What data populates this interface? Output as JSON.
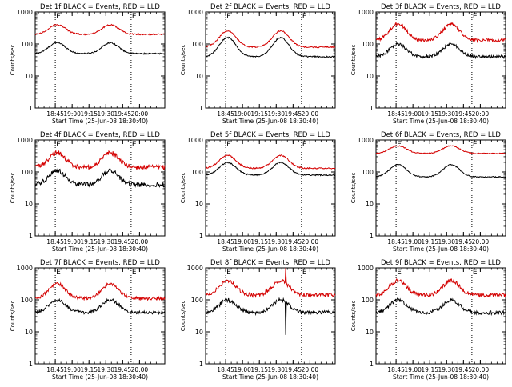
{
  "colors": {
    "events": "#000000",
    "lld": "#d40000",
    "axis": "#000000",
    "background": "#ffffff"
  },
  "shared": {
    "x_ticks": [
      "18:45",
      "19:00",
      "19:15",
      "19:30",
      "19:45",
      "20:00"
    ],
    "y_ticks": [
      "1",
      "10",
      "100",
      "1000"
    ],
    "xlabel": "Start Time (25-Jun-08 18:30:40)",
    "ylabel": "Counts/sec",
    "corner_marks": [
      "E",
      "E"
    ]
  },
  "chart_data": [
    {
      "type": "line",
      "title": "Det 1f BLACK = Events, RED = LLD",
      "yscale": "log",
      "ylim": [
        1,
        1000
      ],
      "series": [
        {
          "name": "Events",
          "color": "#000000",
          "min": 50,
          "peak": 110,
          "noise": 0.02,
          "spikes": []
        },
        {
          "name": "LLD",
          "color": "#d40000",
          "min": 200,
          "peak": 400,
          "noise": 0.02,
          "spikes": []
        }
      ]
    },
    {
      "type": "line",
      "title": "Det 2f BLACK = Events, RED = LLD",
      "yscale": "log",
      "ylim": [
        1,
        1000
      ],
      "series": [
        {
          "name": "Events",
          "color": "#000000",
          "min": 40,
          "peak": 160,
          "noise": 0.02,
          "spikes": []
        },
        {
          "name": "LLD",
          "color": "#d40000",
          "min": 80,
          "peak": 260,
          "noise": 0.02,
          "spikes": []
        }
      ]
    },
    {
      "type": "line",
      "title": "Det 3f BLACK = Events, RED = LLD",
      "yscale": "log",
      "ylim": [
        1,
        1000
      ],
      "series": [
        {
          "name": "Events",
          "color": "#000000",
          "min": 40,
          "peak": 100,
          "noise": 0.05,
          "spikes": []
        },
        {
          "name": "LLD",
          "color": "#d40000",
          "min": 130,
          "peak": 430,
          "noise": 0.05,
          "spikes": []
        }
      ]
    },
    {
      "type": "line",
      "title": "Det 4f BLACK = Events, RED = LLD",
      "yscale": "log",
      "ylim": [
        1,
        1000
      ],
      "series": [
        {
          "name": "Events",
          "color": "#000000",
          "min": 40,
          "peak": 110,
          "noise": 0.07,
          "spikes": []
        },
        {
          "name": "LLD",
          "color": "#d40000",
          "min": 140,
          "peak": 400,
          "noise": 0.07,
          "spikes": []
        }
      ]
    },
    {
      "type": "line",
      "title": "Det 5f BLACK = Events, RED = LLD",
      "yscale": "log",
      "ylim": [
        1,
        1000
      ],
      "series": [
        {
          "name": "Events",
          "color": "#000000",
          "min": 80,
          "peak": 200,
          "noise": 0.02,
          "spikes": []
        },
        {
          "name": "LLD",
          "color": "#d40000",
          "min": 130,
          "peak": 330,
          "noise": 0.02,
          "spikes": []
        }
      ]
    },
    {
      "type": "line",
      "title": "Det 6f BLACK = Events, RED = LLD",
      "yscale": "log",
      "ylim": [
        1,
        1000
      ],
      "series": [
        {
          "name": "Events",
          "color": "#000000",
          "min": 70,
          "peak": 170,
          "noise": 0.015,
          "spikes": []
        },
        {
          "name": "LLD",
          "color": "#d40000",
          "min": 380,
          "peak": 660,
          "noise": 0.015,
          "spikes": []
        }
      ]
    },
    {
      "type": "line",
      "title": "Det 7f BLACK = Events, RED = LLD",
      "yscale": "log",
      "ylim": [
        1,
        1000
      ],
      "series": [
        {
          "name": "Events",
          "color": "#000000",
          "min": 40,
          "peak": 100,
          "noise": 0.05,
          "spikes": []
        },
        {
          "name": "LLD",
          "color": "#d40000",
          "min": 110,
          "peak": 320,
          "noise": 0.05,
          "spikes": []
        }
      ]
    },
    {
      "type": "line",
      "title": "Det 8f BLACK = Events, RED = LLD",
      "yscale": "log",
      "ylim": [
        1,
        1000
      ],
      "series": [
        {
          "name": "Events",
          "color": "#000000",
          "min": 40,
          "peak": 100,
          "noise": 0.06,
          "spikes": [
            {
              "t": 0.62,
              "value": 8
            }
          ]
        },
        {
          "name": "LLD",
          "color": "#d40000",
          "min": 140,
          "peak": 400,
          "noise": 0.06,
          "spikes": [
            {
              "t": 0.62,
              "value": 1000
            }
          ]
        }
      ]
    },
    {
      "type": "line",
      "title": "Det 9f BLACK = Events, RED = LLD",
      "yscale": "log",
      "ylim": [
        1,
        1000
      ],
      "series": [
        {
          "name": "Events",
          "color": "#000000",
          "min": 40,
          "peak": 100,
          "noise": 0.06,
          "spikes": []
        },
        {
          "name": "LLD",
          "color": "#d40000",
          "min": 140,
          "peak": 400,
          "noise": 0.06,
          "spikes": []
        }
      ]
    }
  ]
}
